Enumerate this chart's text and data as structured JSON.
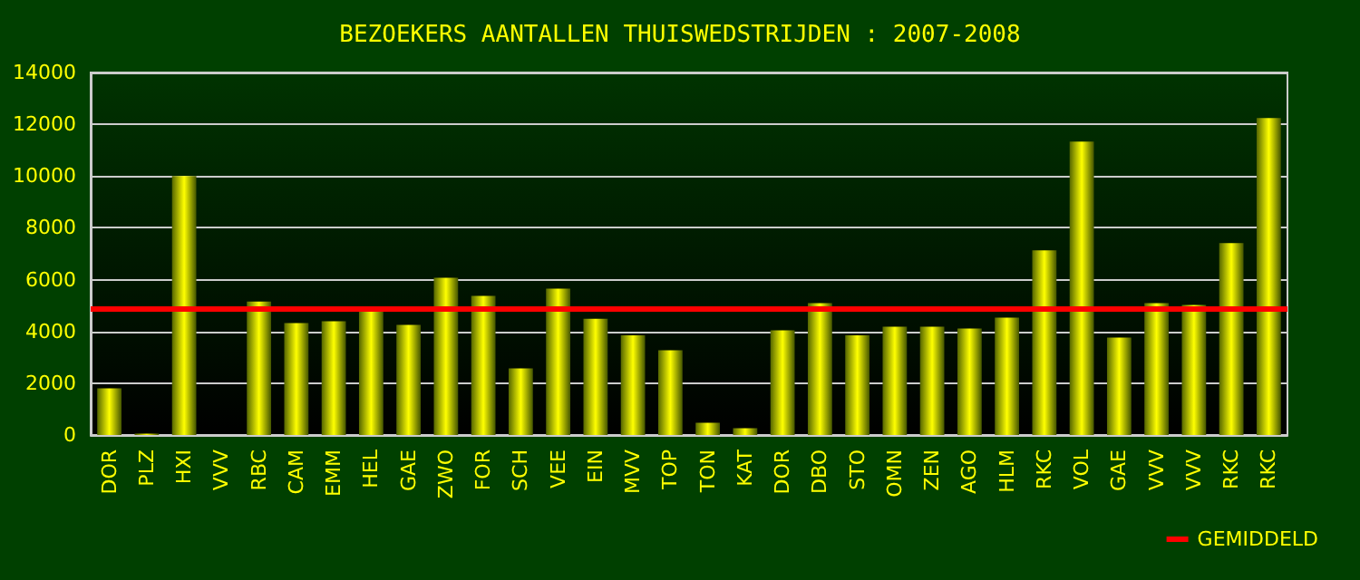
{
  "chart_data": {
    "type": "bar",
    "title": "BEZOEKERS AANTALLEN THUISWEDSTRIJDEN : 2007-2008",
    "categories": [
      "DOR",
      "PLZ",
      "HXI",
      "VVV",
      "RBC",
      "CAM",
      "EMM",
      "HEL",
      "GAE",
      "ZWO",
      "FOR",
      "SCH",
      "VEE",
      "EIN",
      "MVV",
      "TOP",
      "TON",
      "KAT",
      "DOR",
      "DBO",
      "STO",
      "OMN",
      "ZEN",
      "AGO",
      "HLM",
      "RKC",
      "VOL",
      "GAE",
      "VVV",
      "VVV",
      "RKC",
      "RKC"
    ],
    "values": [
      1800,
      50,
      10000,
      null,
      5150,
      4320,
      4390,
      4840,
      4250,
      6070,
      5370,
      2570,
      5650,
      4490,
      3850,
      3270,
      470,
      260,
      4040,
      5090,
      3850,
      4180,
      4180,
      4110,
      4530,
      7130,
      11330,
      3760,
      5090,
      5020,
      7410,
      12240
    ],
    "color": "#ffff00",
    "ylim": [
      0,
      14000
    ],
    "yticks": [
      0,
      2000,
      4000,
      6000,
      8000,
      10000,
      12000,
      14000
    ],
    "grid": "y",
    "legend": "bottom right",
    "ref_lines": [
      {
        "axis": "y",
        "value": 4860,
        "label": "GEMIDDELD",
        "color": "#ff0000"
      }
    ]
  }
}
